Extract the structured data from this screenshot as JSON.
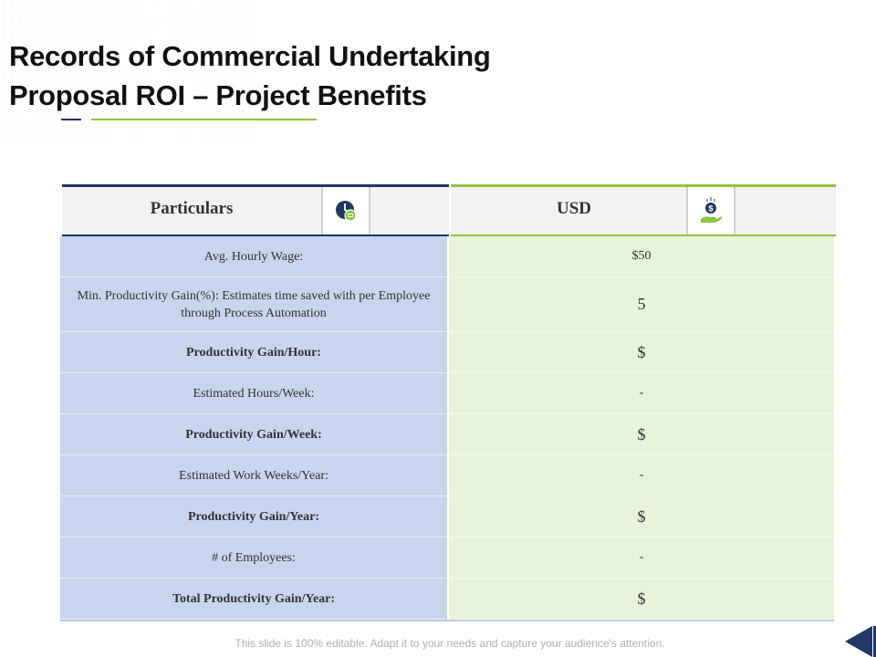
{
  "title": {
    "line1": "Records of Commercial Undertaking",
    "line2": "Proposal ROI – Project Benefits"
  },
  "table": {
    "headers": {
      "particulars": "Particulars",
      "usd": "USD",
      "particulars_icon": "clock-money-icon",
      "usd_icon": "hand-dollar-coin-icon"
    },
    "rows": [
      {
        "label": "Avg. Hourly Wage:",
        "value": "$50",
        "bold": false
      },
      {
        "label": "Min. Productivity Gain(%): Estimates time saved with per Employee through Process Automation",
        "value": "5",
        "bold": false
      },
      {
        "label": "Productivity Gain/Hour:",
        "value": "$",
        "bold": true
      },
      {
        "label": "Estimated Hours/Week:",
        "value": "-",
        "bold": false
      },
      {
        "label": "Productivity Gain/Week:",
        "value": "$",
        "bold": true
      },
      {
        "label": "Estimated Work Weeks/Year:",
        "value": "-",
        "bold": false
      },
      {
        "label": "Productivity Gain/Year:",
        "value": "$",
        "bold": true
      },
      {
        "label": "# of Employees:",
        "value": "-",
        "bold": false
      },
      {
        "label": "Total Productivity Gain/Year:",
        "value": "$",
        "bold": true
      }
    ]
  },
  "footer": "This slide is 100% editable. Adapt it to your needs and capture your audience's attention.",
  "colors": {
    "navy": "#1f3864",
    "green": "#8cc63f",
    "left_cell": "#c9d5ee",
    "right_cell": "#e8f3dc"
  }
}
